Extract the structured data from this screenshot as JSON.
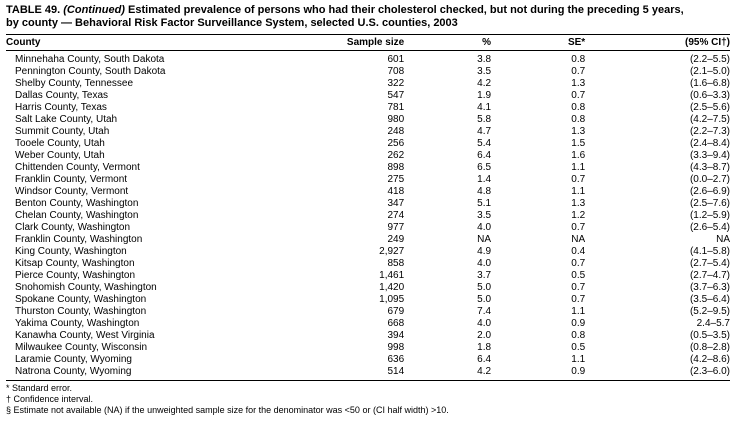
{
  "title": {
    "prefix": "TABLE 49.",
    "continued": "(Continued)",
    "line1_rest": "Estimated prevalence of persons who had their cholesterol checked, but not during the preceding 5 years,",
    "line2": "by county — Behavioral Risk Factor Surveillance System, selected U.S. counties, 2003"
  },
  "columns": [
    "County",
    "Sample size",
    "%",
    "SE*",
    "(95% CI†)"
  ],
  "rows": [
    [
      "Minnehaha County, South Dakota",
      "601",
      "3.8",
      "0.8",
      "(2.2–5.5)"
    ],
    [
      "Pennington County, South Dakota",
      "708",
      "3.5",
      "0.7",
      "(2.1–5.0)"
    ],
    [
      "Shelby County, Tennessee",
      "322",
      "4.2",
      "1.3",
      "(1.6–6.8)"
    ],
    [
      "Dallas County, Texas",
      "547",
      "1.9",
      "0.7",
      "(0.6–3.3)"
    ],
    [
      "Harris County, Texas",
      "781",
      "4.1",
      "0.8",
      "(2.5–5.6)"
    ],
    [
      "Salt Lake County, Utah",
      "980",
      "5.8",
      "0.8",
      "(4.2–7.5)"
    ],
    [
      "Summit County, Utah",
      "248",
      "4.7",
      "1.3",
      "(2.2–7.3)"
    ],
    [
      "Tooele County, Utah",
      "256",
      "5.4",
      "1.5",
      "(2.4–8.4)"
    ],
    [
      "Weber County, Utah",
      "262",
      "6.4",
      "1.6",
      "(3.3–9.4)"
    ],
    [
      "Chittenden County, Vermont",
      "898",
      "6.5",
      "1.1",
      "(4.3–8.7)"
    ],
    [
      "Franklin County, Vermont",
      "275",
      "1.4",
      "0.7",
      "(0.0–2.7)"
    ],
    [
      "Windsor County, Vermont",
      "418",
      "4.8",
      "1.1",
      "(2.6–6.9)"
    ],
    [
      "Benton County, Washington",
      "347",
      "5.1",
      "1.3",
      "(2.5–7.6)"
    ],
    [
      "Chelan County, Washington",
      "274",
      "3.5",
      "1.2",
      "(1.2–5.9)"
    ],
    [
      "Clark County, Washington",
      "977",
      "4.0",
      "0.7",
      "(2.6–5.4)"
    ],
    [
      "Franklin County, Washington",
      "249",
      "NA",
      "NA",
      "NA"
    ],
    [
      "King County, Washington",
      "2,927",
      "4.9",
      "0.4",
      "(4.1–5.8)"
    ],
    [
      "Kitsap County, Washington",
      "858",
      "4.0",
      "0.7",
      "(2.7–5.4)"
    ],
    [
      "Pierce County, Washington",
      "1,461",
      "3.7",
      "0.5",
      "(2.7–4.7)"
    ],
    [
      "Snohomish County, Washington",
      "1,420",
      "5.0",
      "0.7",
      "(3.7–6.3)"
    ],
    [
      "Spokane County, Washington",
      "1,095",
      "5.0",
      "0.7",
      "(3.5–6.4)"
    ],
    [
      "Thurston County, Washington",
      "679",
      "7.4",
      "1.1",
      "(5.2–9.5)"
    ],
    [
      "Yakima County, Washington",
      "668",
      "4.0",
      "0.9",
      "2.4–5.7"
    ],
    [
      "Kanawha County, West Virginia",
      "394",
      "2.0",
      "0.8",
      "(0.5–3.5)"
    ],
    [
      "Milwaukee County, Wisconsin",
      "998",
      "1.8",
      "0.5",
      "(0.8–2.8)"
    ],
    [
      "Laramie County, Wyoming",
      "636",
      "6.4",
      "1.1",
      "(4.2–8.6)"
    ],
    [
      "Natrona County, Wyoming",
      "514",
      "4.2",
      "0.9",
      "(2.3–6.0)"
    ]
  ],
  "footnotes": [
    "* Standard error.",
    "† Confidence interval.",
    "§ Estimate not available (NA) if the unweighted sample size for the denominator was <50 or (CI half width) >10."
  ]
}
